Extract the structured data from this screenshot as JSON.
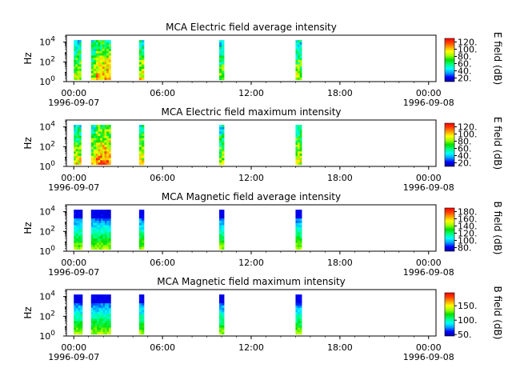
{
  "chart_data": [
    {
      "type": "heatmap",
      "title": "MCA  Electric field average intensity",
      "ylabel": "Hz",
      "yscale": "log",
      "yticks": [
        {
          "v": 1,
          "e": "0"
        },
        {
          "v": 100,
          "e": "2"
        },
        {
          "v": 10000,
          "e": "4"
        }
      ],
      "xticks": [
        "00:00",
        "06:00",
        "12:00",
        "18:00",
        "00:00"
      ],
      "xdates": [
        "1996-09-07",
        "1996-09-08"
      ],
      "colorbar": {
        "label": "E field (dB)",
        "min": 10,
        "max": 130,
        "ticks": [
          "20.",
          "40.",
          "60.",
          "80.",
          "100.",
          "120."
        ],
        "tick_values": [
          20,
          40,
          60,
          80,
          100,
          120
        ]
      },
      "cmap_style": "electric_avg",
      "segments": [
        {
          "start": "1996-09-07T00:00",
          "end": "1996-09-07T00:30",
          "level": 55
        },
        {
          "start": "1996-09-07T01:10",
          "end": "1996-09-07T01:30",
          "level": 55
        },
        {
          "start": "1996-09-07T01:30",
          "end": "1996-09-07T02:30",
          "level": 70
        },
        {
          "start": "1996-09-07T04:25",
          "end": "1996-09-07T04:45",
          "level": 60
        },
        {
          "start": "1996-09-07T09:50",
          "end": "1996-09-07T10:10",
          "level": 50
        },
        {
          "start": "1996-09-07T15:00",
          "end": "1996-09-07T15:25",
          "level": 55
        }
      ]
    },
    {
      "type": "heatmap",
      "title": "MCA  Electric field maximum intensity",
      "ylabel": "Hz",
      "yscale": "log",
      "yticks": [
        {
          "v": 1,
          "e": "0"
        },
        {
          "v": 100,
          "e": "2"
        },
        {
          "v": 10000,
          "e": "4"
        }
      ],
      "xticks": [
        "00:00",
        "06:00",
        "12:00",
        "18:00",
        "00:00"
      ],
      "xdates": [
        "1996-09-07",
        "1996-09-08"
      ],
      "colorbar": {
        "label": "E field (dB)",
        "min": 10,
        "max": 130,
        "ticks": [
          "20.",
          "40.",
          "60.",
          "80.",
          "100.",
          "120."
        ],
        "tick_values": [
          20,
          40,
          60,
          80,
          100,
          120
        ]
      },
      "cmap_style": "electric_max",
      "segments": [
        {
          "start": "1996-09-07T00:00",
          "end": "1996-09-07T00:30",
          "level": 60
        },
        {
          "start": "1996-09-07T01:10",
          "end": "1996-09-07T01:30",
          "level": 60
        },
        {
          "start": "1996-09-07T01:30",
          "end": "1996-09-07T02:30",
          "level": 75
        },
        {
          "start": "1996-09-07T04:25",
          "end": "1996-09-07T04:45",
          "level": 60
        },
        {
          "start": "1996-09-07T09:50",
          "end": "1996-09-07T10:10",
          "level": 55
        },
        {
          "start": "1996-09-07T15:00",
          "end": "1996-09-07T15:25",
          "level": 60
        }
      ]
    },
    {
      "type": "heatmap",
      "title": "MCA  Magnetic field average intensity",
      "ylabel": "Hz",
      "yscale": "log",
      "yticks": [
        {
          "v": 1,
          "e": "0"
        },
        {
          "v": 100,
          "e": "2"
        },
        {
          "v": 10000,
          "e": "4"
        }
      ],
      "xticks": [
        "00:00",
        "06:00",
        "12:00",
        "18:00",
        "00:00"
      ],
      "xdates": [
        "1996-09-07",
        "1996-09-08"
      ],
      "colorbar": {
        "label": "B field (dB)",
        "min": 70,
        "max": 190,
        "ticks": [
          "80.",
          "100.",
          "120.",
          "140.",
          "160.",
          "180."
        ],
        "tick_values": [
          80,
          100,
          120,
          140,
          160,
          180
        ]
      },
      "cmap_style": "magnetic",
      "segments": [
        {
          "start": "1996-09-07T00:00",
          "end": "1996-09-07T00:35",
          "level": 50
        },
        {
          "start": "1996-09-07T01:10",
          "end": "1996-09-07T02:30",
          "level": 50
        },
        {
          "start": "1996-09-07T04:25",
          "end": "1996-09-07T04:45",
          "level": 50
        },
        {
          "start": "1996-09-07T09:50",
          "end": "1996-09-07T10:10",
          "level": 50
        },
        {
          "start": "1996-09-07T15:00",
          "end": "1996-09-07T15:25",
          "level": 50
        }
      ]
    },
    {
      "type": "heatmap",
      "title": "MCA  Magnetic field maximum intensity",
      "ylabel": "Hz",
      "yscale": "log",
      "yticks": [
        {
          "v": 1,
          "e": "0"
        },
        {
          "v": 100,
          "e": "2"
        },
        {
          "v": 10000,
          "e": "4"
        }
      ],
      "xticks": [
        "00:00",
        "06:00",
        "12:00",
        "18:00",
        "00:00"
      ],
      "xdates": [
        "1996-09-07",
        "1996-09-08"
      ],
      "colorbar": {
        "label": "B field (dB)",
        "min": 45,
        "max": 195,
        "ticks": [
          "50.",
          "100.",
          "150."
        ],
        "tick_values": [
          50,
          100,
          150
        ]
      },
      "cmap_style": "magnetic_max",
      "segments": [
        {
          "start": "1996-09-07T00:00",
          "end": "1996-09-07T00:35",
          "level": 50
        },
        {
          "start": "1996-09-07T01:10",
          "end": "1996-09-07T02:30",
          "level": 50
        },
        {
          "start": "1996-09-07T04:25",
          "end": "1996-09-07T04:45",
          "level": 50
        },
        {
          "start": "1996-09-07T09:50",
          "end": "1996-09-07T10:10",
          "level": 50
        },
        {
          "start": "1996-09-07T15:00",
          "end": "1996-09-07T15:25",
          "level": 60
        }
      ]
    }
  ],
  "colors": {
    "colormap": [
      "#0000a0",
      "#0000ff",
      "#00a0ff",
      "#00ffff",
      "#00ff80",
      "#00e000",
      "#a0ff00",
      "#ffff00",
      "#ffa000",
      "#ff4000",
      "#ff0000"
    ]
  }
}
